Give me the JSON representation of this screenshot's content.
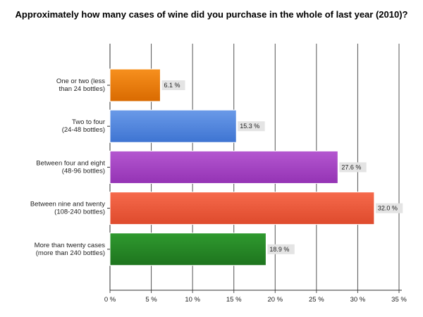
{
  "chart_data": {
    "type": "bar",
    "orientation": "horizontal",
    "title": "Approximately how many cases of wine did you purchase in the whole of last year (2010)?",
    "categories": [
      [
        "One or two (less",
        "than 24 bottles)"
      ],
      [
        "Two to four",
        "(24-48 bottles)"
      ],
      [
        "Between four and eight",
        "(48-96 bottles)"
      ],
      [
        "Between nine and twenty",
        "(108-240 bottles)"
      ],
      [
        "More than twenty cases",
        "(more than 240 bottles)"
      ]
    ],
    "values": [
      6.1,
      15.3,
      27.6,
      32.0,
      18.9
    ],
    "data_labels": [
      "6.1 %",
      "15.3 %",
      "27.6 %",
      "32.0 %",
      "18.9 %"
    ],
    "colors": [
      [
        "#f7901e",
        "#d96a00"
      ],
      [
        "#6a9ae8",
        "#3e74d2"
      ],
      [
        "#b457d0",
        "#9433b4"
      ],
      [
        "#f66a4c",
        "#de4a2c"
      ],
      [
        "#2f9a2f",
        "#1e741e"
      ]
    ],
    "xlim": [
      0,
      35
    ],
    "xticks": [
      0,
      5,
      10,
      15,
      20,
      25,
      30,
      35
    ],
    "xtick_labels": [
      "0 %",
      "5 %",
      "10 %",
      "15 %",
      "20 %",
      "25 %",
      "30 %",
      "35 %"
    ],
    "grid": true
  }
}
